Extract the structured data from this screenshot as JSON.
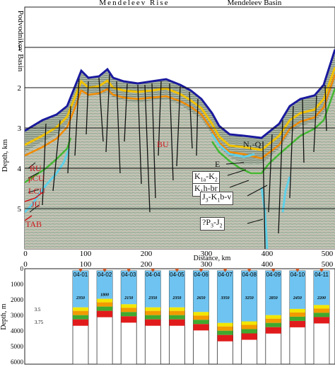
{
  "figure": {
    "top_panel": {
      "header": [
        "Mendeleev Rise",
        "Mendeleev Basin"
      ],
      "side_label": "Podvodnikov Basin",
      "y_axis_label": "Depth, km",
      "y_ticks": [
        "1",
        "2",
        "3",
        "4",
        "5"
      ],
      "x_axis_label": "Distance, km",
      "x_ticks": [
        "0",
        "100",
        "200",
        "300",
        "400",
        "500"
      ],
      "left_horizons": [
        "RU",
        "pCU",
        "LCU",
        "JU",
        "TAB"
      ],
      "center_label": "BU",
      "right_labels": [
        "N1-Q",
        "E",
        "K1a-K2",
        "K1h-br",
        "J3-K1b-v",
        "?P3-J2"
      ],
      "colors": {
        "seabed": "#1a1a9e",
        "layer_yellow": "#f2c200",
        "layer_orange": "#f28a00",
        "layer_green": "#44b833",
        "layer_cyan": "#5fd0e8",
        "layer_red": "#d0161b",
        "faults": "#111111"
      }
    },
    "bottom_panel": {
      "y_axis_label": "Depth, m",
      "y_ticks": [
        "0",
        "1000",
        "2000",
        "3000",
        "4000",
        "5000",
        "6000"
      ],
      "x_ticks": [
        "0",
        "100",
        "200",
        "300",
        "400",
        "500"
      ],
      "columns": [
        {
          "id": "04-01",
          "water": "2350"
        },
        {
          "id": "04-02",
          "water": "1800"
        },
        {
          "id": "04-03",
          "water": "2150"
        },
        {
          "id": "04-04",
          "water": "2350"
        },
        {
          "id": "04-05",
          "water": "2350"
        },
        {
          "id": "04-06",
          "water": "2650"
        },
        {
          "id": "04-07",
          "water": "3350"
        },
        {
          "id": "04-08",
          "water": "3250"
        },
        {
          "id": "04-09",
          "water": "2850"
        },
        {
          "id": "04-10",
          "water": "2450"
        },
        {
          "id": "04-11",
          "water": "2200"
        }
      ],
      "left_values": [
        "3.5",
        "3.75"
      ],
      "colors": {
        "water": "#6ec3f0",
        "yellow": "#f2e600",
        "orange": "#f29a00",
        "green": "#3faa2e",
        "red": "#e11b1b",
        "marker": "#cc5522"
      }
    }
  }
}
